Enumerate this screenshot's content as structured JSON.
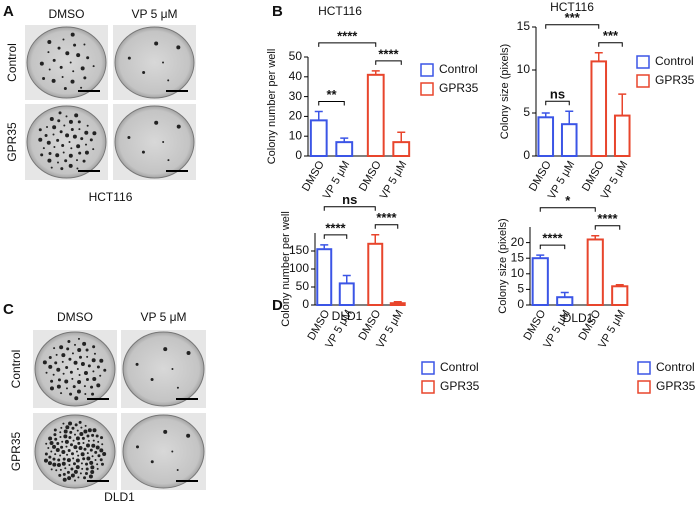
{
  "photo_panels": [
    {
      "letter": "A",
      "columns": [
        "DMSO",
        "VP 5 μM"
      ],
      "rows": [
        "Control",
        "GPR35"
      ],
      "caption": "HCT116"
    },
    {
      "letter": "C",
      "columns": [
        "DMSO",
        "VP 5 μM"
      ],
      "rows": [
        "Control",
        "GPR35"
      ],
      "caption": "DLD1"
    }
  ],
  "chart_data": [
    {
      "type": "bar",
      "panel": "B",
      "title": "HCT116",
      "y_label": "Colony number per well",
      "categories": [
        "DMSO",
        "VP 5 μM",
        "DMSO",
        "VP 5 μM"
      ],
      "series": [
        {
          "name": "Control",
          "color": "#3b55e6",
          "values": [
            18,
            7,
            null,
            null
          ],
          "errors": [
            4.5,
            2,
            null,
            null
          ]
        },
        {
          "name": "GPR35",
          "color": "#e8452c",
          "values": [
            null,
            null,
            41,
            7
          ],
          "errors": [
            null,
            null,
            2,
            5
          ]
        }
      ],
      "ylim": [
        0,
        50
      ],
      "yticks": [
        0,
        10,
        20,
        30,
        40,
        50
      ],
      "significance": [
        {
          "label": "****",
          "between": [
            0,
            2
          ]
        },
        {
          "label": "**",
          "between": [
            0,
            1
          ]
        },
        {
          "label": "****",
          "between": [
            2,
            3
          ]
        }
      ]
    },
    {
      "type": "bar",
      "title": "HCT116",
      "y_label": "Colony size (pixels)",
      "categories": [
        "DMSO",
        "VP 5 μM",
        "DMSO",
        "VP 5 μM"
      ],
      "series": [
        {
          "name": "Control",
          "color": "#3b55e6",
          "values": [
            4.5,
            3.7,
            null,
            null
          ],
          "errors": [
            0.5,
            1.5,
            null,
            null
          ]
        },
        {
          "name": "GPR35",
          "color": "#e8452c",
          "values": [
            null,
            null,
            11,
            4.7
          ],
          "errors": [
            null,
            null,
            1,
            2.5
          ]
        }
      ],
      "ylim": [
        0,
        15
      ],
      "yticks": [
        0,
        5,
        10,
        15
      ],
      "significance": [
        {
          "label": "***",
          "between": [
            0,
            2
          ]
        },
        {
          "label": "ns",
          "between": [
            0,
            1
          ]
        },
        {
          "label": "***",
          "between": [
            2,
            3
          ]
        }
      ]
    },
    {
      "type": "bar",
      "panel": "D",
      "title": "DLD1",
      "y_label": "Colony number per well",
      "categories": [
        "DMSO",
        "VP 5 μM",
        "DMSO",
        "VP 5 μM"
      ],
      "series": [
        {
          "name": "Control",
          "color": "#3b55e6",
          "values": [
            155,
            60,
            null,
            null
          ],
          "errors": [
            12,
            22,
            null,
            null
          ]
        },
        {
          "name": "GPR35",
          "color": "#e8452c",
          "values": [
            null,
            null,
            170,
            5
          ],
          "errors": [
            null,
            null,
            25,
            4
          ]
        }
      ],
      "ylim": [
        0,
        200
      ],
      "yticks": [
        0,
        50,
        100,
        150
      ],
      "significance": [
        {
          "label": "ns",
          "between": [
            0,
            2
          ]
        },
        {
          "label": "****",
          "between": [
            0,
            1
          ]
        },
        {
          "label": "****",
          "between": [
            2,
            3
          ]
        }
      ]
    },
    {
      "type": "bar",
      "title": "DLD1",
      "y_label": "Colony size (pixels)",
      "categories": [
        "DMSO",
        "VP 5 μM",
        "DMSO",
        "VP 5 μM"
      ],
      "series": [
        {
          "name": "Control",
          "color": "#3b55e6",
          "values": [
            15,
            2.5,
            null,
            null
          ],
          "errors": [
            1,
            1.5,
            null,
            null
          ]
        },
        {
          "name": "GPR35",
          "color": "#e8452c",
          "values": [
            null,
            null,
            21,
            6
          ],
          "errors": [
            null,
            null,
            1.2,
            0.5
          ]
        }
      ],
      "ylim": [
        0,
        25
      ],
      "yticks": [
        0,
        5,
        10,
        15,
        20
      ],
      "significance": [
        {
          "label": "*",
          "between": [
            0,
            2
          ]
        },
        {
          "label": "****",
          "between": [
            0,
            1
          ]
        },
        {
          "label": "****",
          "between": [
            2,
            3
          ]
        }
      ]
    }
  ]
}
